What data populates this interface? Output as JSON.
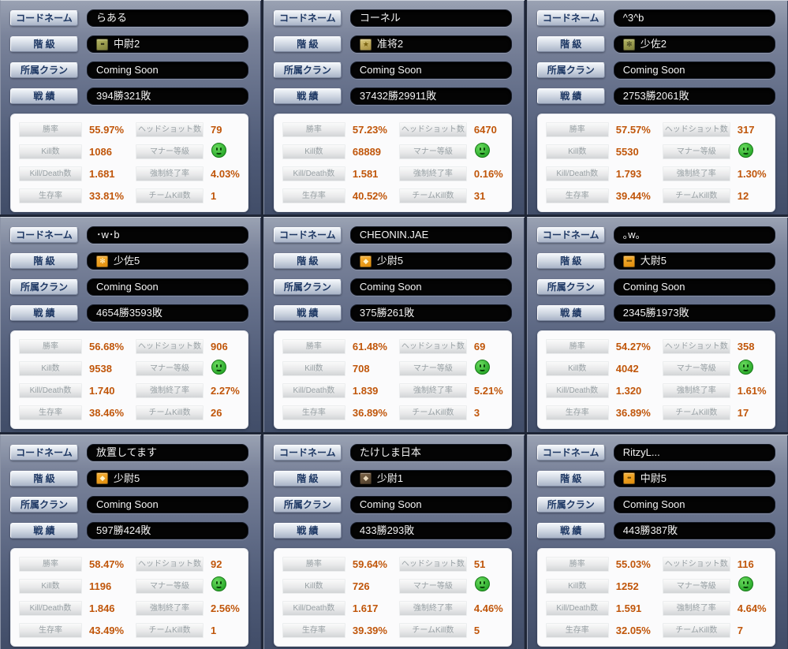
{
  "field_labels": {
    "codename": "コードネーム",
    "rank": "階 級",
    "clan": "所属クラン",
    "record": "戦 績"
  },
  "stat_labels": {
    "win_rate": "勝率",
    "headshots": "ヘッドショット数",
    "kills": "Kill数",
    "manner": "マナー等級",
    "kd": "Kill/Death数",
    "force_quit": "強制終了率",
    "survival": "生存率",
    "team_kills": "チームKill数"
  },
  "icons": {
    "manner_grade": "green-smiley-face"
  },
  "colors": {
    "stat_value_text": "#c0560a",
    "manner_green": "#2fae2f",
    "field_background": "#040404",
    "panel_background": "#fbfbfc"
  },
  "cards": [
    {
      "codename": "らある",
      "rank": "中尉2",
      "rank_icon": "rank-badge-olive-two-dots",
      "rank_icon_css": "background:linear-gradient(160deg,#b6b764,#7f803a);color:#2d2d15",
      "rank_icon_glyph": "••",
      "clan": "Coming Soon",
      "record": "394勝321敗",
      "stats": {
        "win_rate": "55.97%",
        "headshots": "79",
        "kills": "1086",
        "kd": "1.681",
        "force_quit": "4.03%",
        "survival": "33.81%",
        "team_kills": "1"
      }
    },
    {
      "codename": "コーネル",
      "rank": "准将2",
      "rank_icon": "rank-badge-gold-star",
      "rank_icon_css": "background:linear-gradient(160deg,#dbca7e,#a68e3e);color:#77600e",
      "rank_icon_glyph": "★",
      "clan": "Coming Soon",
      "record": "37432勝29911敗",
      "stats": {
        "win_rate": "57.23%",
        "headshots": "6470",
        "kills": "68889",
        "kd": "1.581",
        "force_quit": "0.16%",
        "survival": "40.52%",
        "team_kills": "31"
      }
    },
    {
      "codename": "^3^b",
      "rank": "少佐2",
      "rank_icon": "rank-badge-olive-burst",
      "rank_icon_css": "background:linear-gradient(160deg,#b6b764,#7f803a);color:#3a3a1b",
      "rank_icon_glyph": "✻",
      "clan": "Coming Soon",
      "record": "2753勝2061敗",
      "stats": {
        "win_rate": "57.57%",
        "headshots": "317",
        "kills": "5530",
        "kd": "1.793",
        "force_quit": "1.30%",
        "survival": "39.44%",
        "team_kills": "12"
      }
    },
    {
      "codename": "･w･b",
      "rank": "少佐5",
      "rank_icon": "rank-badge-orange-burst",
      "rank_icon_css": "background:linear-gradient(160deg,#f7b33a,#e08c0a);color:#fff0c2",
      "rank_icon_glyph": "✻",
      "clan": "Coming Soon",
      "record": "4654勝3593敗",
      "stats": {
        "win_rate": "56.68%",
        "headshots": "906",
        "kills": "9538",
        "kd": "1.740",
        "force_quit": "2.27%",
        "survival": "38.46%",
        "team_kills": "26"
      }
    },
    {
      "codename": "CHEONIN.JAE",
      "rank": "少尉5",
      "rank_icon": "rank-badge-orange-diamond",
      "rank_icon_css": "background:linear-gradient(160deg,#f7b33a,#e08c0a);color:#fff4cd",
      "rank_icon_glyph": "◆",
      "clan": "Coming Soon",
      "record": "375勝261敗",
      "stats": {
        "win_rate": "61.48%",
        "headshots": "69",
        "kills": "708",
        "kd": "1.839",
        "force_quit": "5.21%",
        "survival": "36.89%",
        "team_kills": "3"
      }
    },
    {
      "codename": "｡w｡",
      "rank": "大尉5",
      "rank_icon": "rank-badge-orange-three-dots",
      "rank_icon_css": "background:linear-gradient(160deg,#f7b33a,#e08c0a);color:#6e4a08",
      "rank_icon_glyph": "•••",
      "clan": "Coming Soon",
      "record": "2345勝1973敗",
      "stats": {
        "win_rate": "54.27%",
        "headshots": "358",
        "kills": "4042",
        "kd": "1.320",
        "force_quit": "1.61%",
        "survival": "36.89%",
        "team_kills": "17"
      }
    },
    {
      "codename": "放置してます",
      "rank": "少尉5",
      "rank_icon": "rank-badge-orange-diamond",
      "rank_icon_css": "background:linear-gradient(160deg,#f7b33a,#e08c0a);color:#fff4cd",
      "rank_icon_glyph": "◆",
      "clan": "Coming Soon",
      "record": "597勝424敗",
      "stats": {
        "win_rate": "58.47%",
        "headshots": "92",
        "kills": "1196",
        "kd": "1.846",
        "force_quit": "2.56%",
        "survival": "43.49%",
        "team_kills": "1"
      }
    },
    {
      "codename": "たけしま日本",
      "rank": "少尉1",
      "rank_icon": "rank-badge-brown-diamond",
      "rank_icon_css": "background:linear-gradient(160deg,#7d6549,#51402d);color:#ead9bc",
      "rank_icon_glyph": "◆",
      "clan": "Coming Soon",
      "record": "433勝293敗",
      "stats": {
        "win_rate": "59.64%",
        "headshots": "51",
        "kills": "726",
        "kd": "1.617",
        "force_quit": "4.46%",
        "survival": "39.39%",
        "team_kills": "5"
      }
    },
    {
      "codename": "RitzyL...",
      "rank": "中尉5",
      "rank_icon": "rank-badge-orange-two-dots",
      "rank_icon_css": "background:linear-gradient(160deg,#f7b33a,#e08c0a);color:#6e4a08",
      "rank_icon_glyph": "••",
      "clan": "Coming Soon",
      "record": "443勝387敗",
      "stats": {
        "win_rate": "55.03%",
        "headshots": "116",
        "kills": "1252",
        "kd": "1.591",
        "force_quit": "4.64%",
        "survival": "32.05%",
        "team_kills": "7"
      }
    }
  ]
}
